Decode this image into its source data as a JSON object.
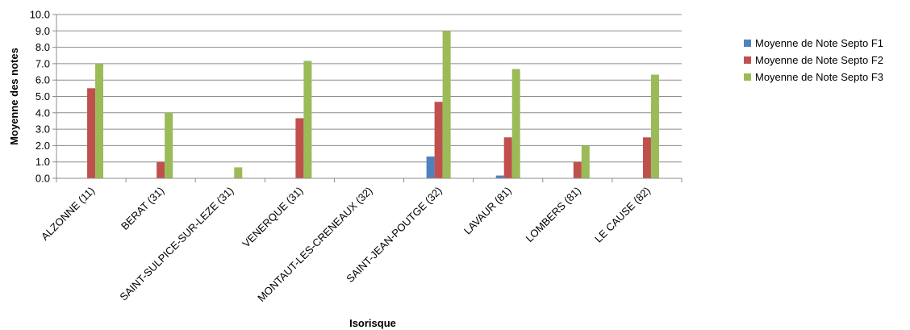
{
  "chart_data": {
    "type": "bar",
    "title": "",
    "xlabel": "Isorisque",
    "ylabel": "Moyenne des notes",
    "ylim": [
      0,
      10
    ],
    "yticks": [
      "0.0",
      "1.0",
      "2.0",
      "3.0",
      "4.0",
      "5.0",
      "6.0",
      "7.0",
      "8.0",
      "9.0",
      "10.0"
    ],
    "grid": true,
    "legend_position": "right",
    "categories": [
      "ALZONNE (11)",
      "BERAT (31)",
      "SAINT-SULPICE-SUR-LEZE (31)",
      "VENERQUE (31)",
      "MONTAUT-LES-CRENEAUX (32)",
      "SAINT-JEAN-POUTGE (32)",
      "LAVAUR (81)",
      "LOMBERS (81)",
      "LE CAUSE (82)"
    ],
    "series": [
      {
        "name": "Moyenne de Note Septo F1",
        "color": "#4F81BD",
        "values": [
          0,
          0,
          0,
          0,
          0,
          1.33,
          0.17,
          0,
          0
        ]
      },
      {
        "name": "Moyenne de Note Septo F2",
        "color": "#C0504D",
        "values": [
          5.5,
          1.0,
          0,
          3.67,
          0,
          4.67,
          2.5,
          1.0,
          2.5
        ]
      },
      {
        "name": "Moyenne de Note Septo F3",
        "color": "#9BBB59",
        "values": [
          7.0,
          4.0,
          0.67,
          7.17,
          0,
          9.0,
          6.67,
          2.0,
          6.33
        ]
      }
    ]
  }
}
